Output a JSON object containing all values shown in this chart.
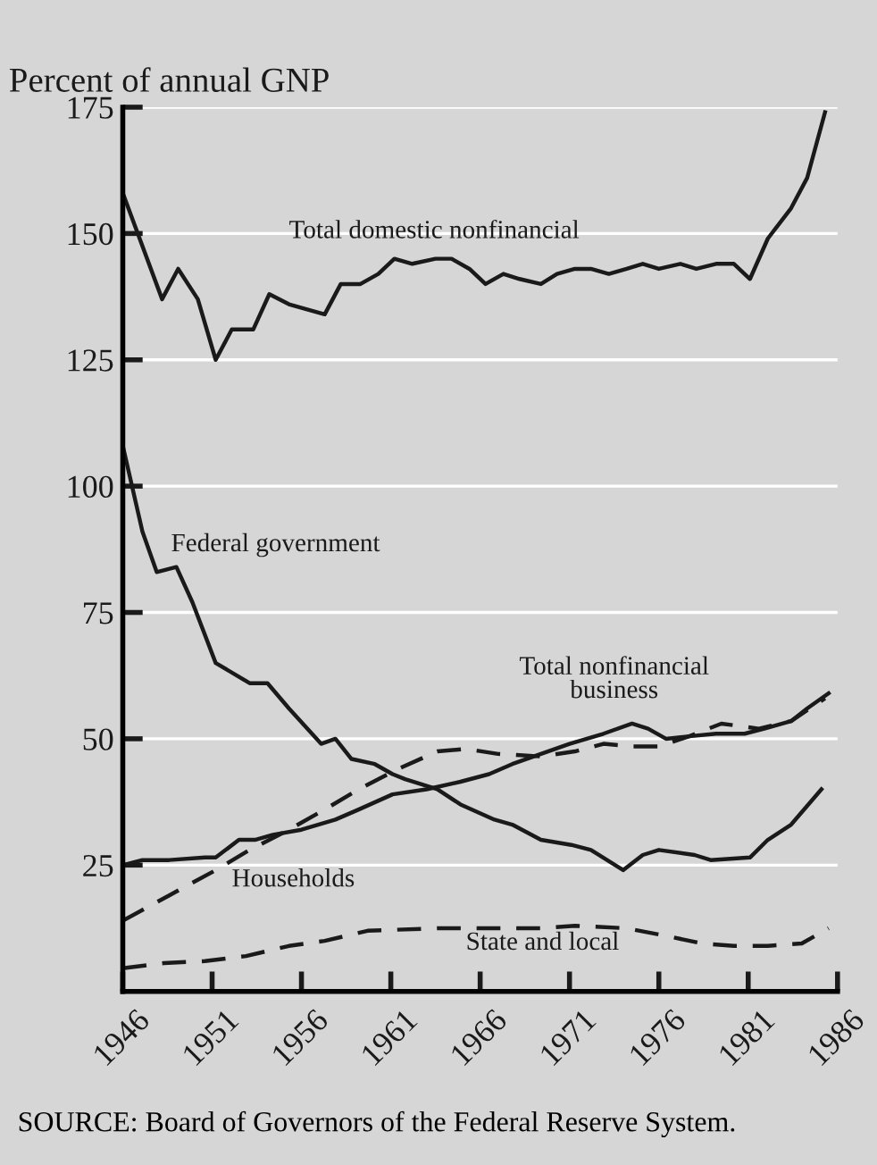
{
  "chart_data": {
    "type": "line",
    "title": "Percent of annual GNP",
    "annotations": [
      "SOURCE: Board of Governors of the Federal Reserve System."
    ],
    "xlim": [
      1946,
      1986
    ],
    "xticks": [
      1946,
      1951,
      1956,
      1961,
      1966,
      1971,
      1976,
      1981,
      1986
    ],
    "ylim": [
      0,
      175
    ],
    "yticks": [
      25,
      50,
      75,
      100,
      125,
      150,
      175
    ],
    "grid": "y",
    "legend": false,
    "marker": "none",
    "series": [
      {
        "name": "Total domestic nonfinancial",
        "color": "#1a1a1a",
        "line_style": "solid",
        "x": [
          1946,
          1948.2,
          1949.1,
          1950.2,
          1951.2,
          1952.1,
          1953.3,
          1954.2,
          1955.3,
          1957.3,
          1958.2,
          1959.3,
          1960.3,
          1961.2,
          1962.2,
          1963.5,
          1964.4,
          1965.4,
          1966.3,
          1967.3,
          1968.2,
          1969.4,
          1970.3,
          1971.3,
          1972.2,
          1973.2,
          1974.2,
          1975.1,
          1976,
          1977.2,
          1978.1,
          1979.2,
          1980.2,
          1981.1,
          1982.1,
          1983.4,
          1984.3,
          1985.3
        ],
        "values": [
          158,
          137,
          143,
          137,
          125,
          131,
          131,
          138,
          136,
          134,
          140,
          140,
          142,
          145,
          144,
          145,
          145,
          143,
          140,
          142,
          141,
          140,
          142,
          143,
          143,
          142,
          143,
          144,
          143,
          144,
          143,
          144,
          144,
          141,
          149,
          155,
          161,
          174
        ]
      },
      {
        "name": "Federal government",
        "color": "#1a1a1a",
        "line_style": "solid",
        "x": [
          1946,
          1947.1,
          1947.9,
          1949,
          1949.9,
          1951.2,
          1953.1,
          1954.1,
          1955.3,
          1957.1,
          1957.9,
          1958.8,
          1960.1,
          1961.1,
          1961.8,
          1963.6,
          1964.9,
          1966.8,
          1967.8,
          1969.4,
          1971.1,
          1972.2,
          1974,
          1975.1,
          1976,
          1978,
          1978.9,
          1981.1,
          1982.1,
          1983.4,
          1985.1
        ],
        "values": [
          108,
          91,
          83,
          84,
          77,
          65,
          61,
          61,
          56,
          49,
          50,
          46,
          45,
          43,
          42,
          40,
          37,
          34,
          33,
          30,
          29,
          28,
          24,
          27,
          28,
          27,
          26,
          26.5,
          30,
          33,
          40
        ]
      },
      {
        "name": "Total nonfinancial business",
        "color": "#1a1a1a",
        "line_style": "solid",
        "x": [
          1946,
          1947.1,
          1948.6,
          1950.6,
          1951.2,
          1952.5,
          1953.4,
          1954.4,
          1956,
          1957.9,
          1959.2,
          1961.1,
          1963,
          1964.9,
          1966.5,
          1967.8,
          1969.4,
          1971,
          1972.9,
          1974.5,
          1975.4,
          1976.4,
          1977.7,
          1979.2,
          1980.8,
          1981.9,
          1983.4,
          1984.3,
          1985.5
        ],
        "values": [
          25,
          26,
          26,
          26.5,
          26.5,
          30,
          30,
          31,
          32,
          34,
          36,
          39,
          40,
          41.5,
          43,
          45,
          47,
          49,
          51,
          53,
          52,
          50,
          50.5,
          51,
          51,
          52,
          53.5,
          56,
          59
        ]
      },
      {
        "name": "Households",
        "color": "#1a1a1a",
        "line_style": "dashed",
        "x": [
          1946,
          1948.6,
          1951.2,
          1953.1,
          1955.3,
          1957.3,
          1959.2,
          1961.4,
          1963.6,
          1965.2,
          1967,
          1969.4,
          1971.3,
          1972.9,
          1974.5,
          1976,
          1977.7,
          1979.5,
          1981.6,
          1983.4,
          1985.3
        ],
        "values": [
          14,
          19,
          24,
          28,
          32,
          36,
          40,
          44,
          47.5,
          48,
          47,
          46.5,
          47.5,
          49,
          48.5,
          48.5,
          50.5,
          53,
          52,
          53.5,
          58
        ]
      },
      {
        "name": "State and local",
        "color": "#1a1a1a",
        "line_style": "dashed",
        "x": [
          1946,
          1948.3,
          1950.6,
          1952.9,
          1955.3,
          1957.3,
          1959.7,
          1963.6,
          1966.5,
          1969.4,
          1971.3,
          1974.2,
          1976.4,
          1978.4,
          1980.2,
          1982.1,
          1984,
          1985.5
        ],
        "values": [
          4.6,
          5.6,
          6,
          7,
          9,
          10,
          12,
          12.5,
          12.5,
          12.5,
          13,
          12.5,
          11,
          9.5,
          9,
          9,
          9.5,
          12.5
        ]
      }
    ]
  }
}
